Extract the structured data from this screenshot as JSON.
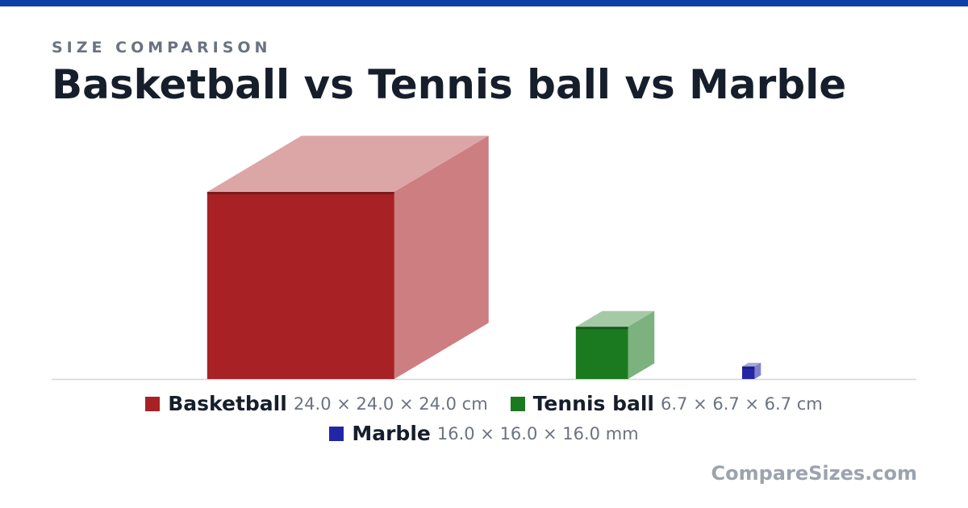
{
  "chart_data": {
    "type": "cube",
    "subtitle": "SIZE COMPARISON",
    "title": "Basketball vs Tennis ball vs Marble",
    "categories": [
      "Basketball",
      "Tennis ball",
      "Marble"
    ],
    "values": [
      24,
      6.7,
      1.6
    ],
    "value_labels": [
      "24.0 × 24.0 × 24.0 cm",
      "6.7 × 6.7 × 6.7 cm",
      "16.0 × 16.0 × 16.0 mm"
    ],
    "colors": [
      "#a82124",
      "#1b7a1f",
      "#2325a8"
    ]
  },
  "footer": {
    "brand": "CompareSizes.com"
  }
}
